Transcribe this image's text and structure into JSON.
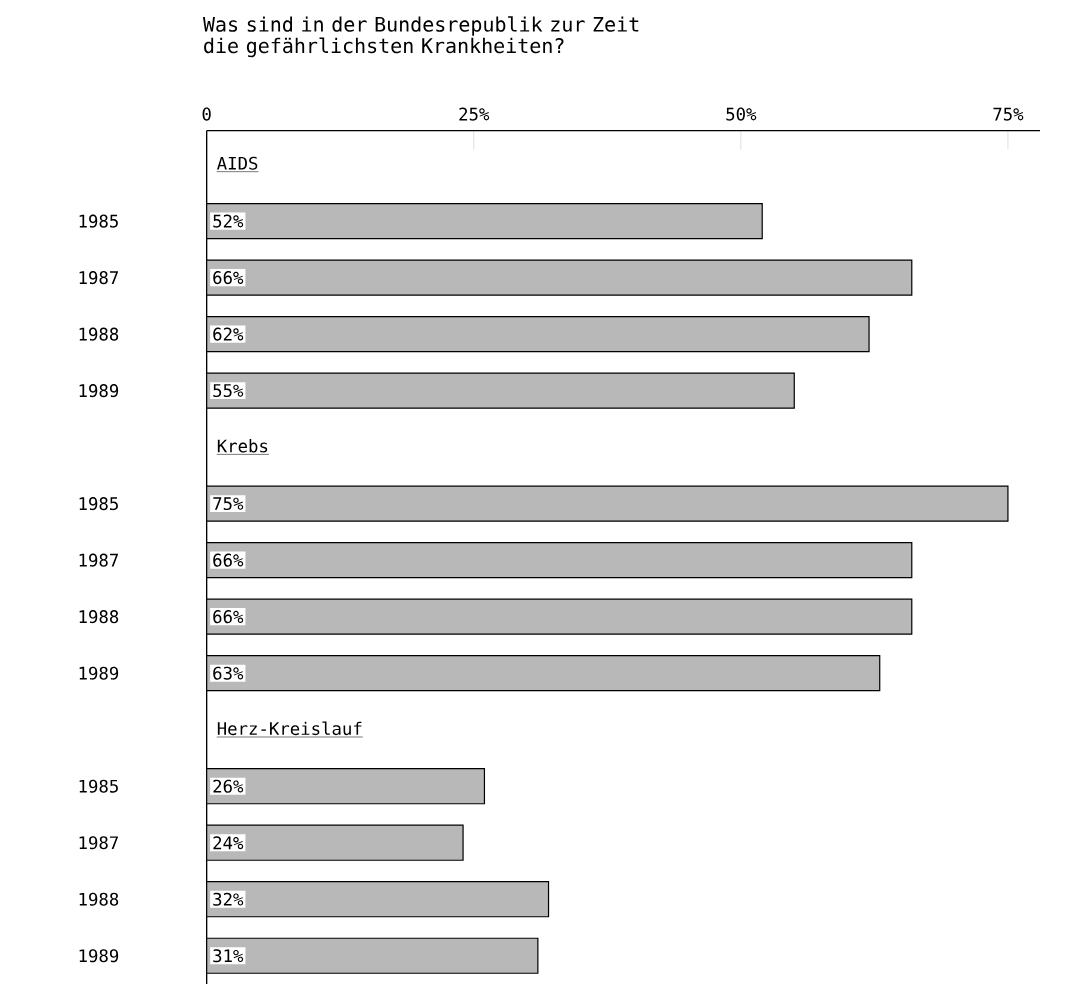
{
  "chart_data": {
    "type": "bar",
    "orientation": "horizontal",
    "title": "Was sind in der Bundesrepublik zur Zeit die gefährlichsten Krankheiten?",
    "categories": [
      null,
      "1985",
      "1987",
      "1988",
      "1989",
      null,
      "1985",
      "1987",
      "1988",
      "1989",
      null,
      "1985",
      "1987",
      "1988",
      "1989"
    ],
    "values": [
      null,
      52,
      66,
      62,
      55,
      null,
      75,
      66,
      66,
      63,
      null,
      26,
      24,
      32,
      31
    ],
    "value_labels": [
      null,
      "52%",
      "66%",
      "62%",
      "55%",
      null,
      "75%",
      "66%",
      "66%",
      "63%",
      null,
      "26%",
      "24%",
      "32%",
      "31%"
    ],
    "annotations": [
      "AIDS",
      "Krebs",
      "Herz-Kreislauf"
    ],
    "color": "#b8b8b8",
    "xlim": [
      0,
      78
    ],
    "xticks": [
      {
        "value": 0,
        "label": "0"
      },
      {
        "value": 25,
        "label": "25%"
      },
      {
        "value": 50,
        "label": "50%"
      },
      {
        "value": 75,
        "label": "75%"
      }
    ]
  }
}
